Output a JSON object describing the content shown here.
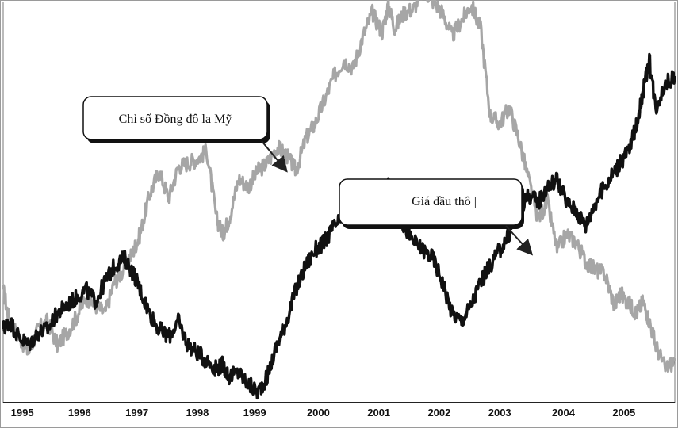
{
  "chart_data": {
    "type": "line",
    "xlim": [
      1994.9,
      2005.45
    ],
    "ylim": [
      0,
      100
    ],
    "x_ticks": [
      {
        "label": "1995",
        "x": 1995.2
      },
      {
        "label": "1996",
        "x": 1996.1
      },
      {
        "label": "1997",
        "x": 1997.0
      },
      {
        "label": "1998",
        "x": 1997.95
      },
      {
        "label": "1999",
        "x": 1998.85
      },
      {
        "label": "2000",
        "x": 1999.85
      },
      {
        "label": "2001",
        "x": 2000.8
      },
      {
        "label": "2002",
        "x": 2001.75
      },
      {
        "label": "2003",
        "x": 2002.7
      },
      {
        "label": "2004",
        "x": 2003.7
      },
      {
        "label": "2005",
        "x": 2004.65
      }
    ],
    "series": [
      {
        "name": "Chỉ số Đồng đô la Mỹ",
        "color": "#a6a6a6",
        "x": [
          1994.9,
          1995.0,
          1995.15,
          1995.3,
          1995.45,
          1995.6,
          1995.75,
          1995.9,
          1996.05,
          1996.2,
          1996.35,
          1996.5,
          1996.65,
          1996.8,
          1996.95,
          1997.05,
          1997.2,
          1997.35,
          1997.5,
          1997.65,
          1997.8,
          1997.95,
          1998.1,
          1998.25,
          1998.35,
          1998.45,
          1998.6,
          1998.75,
          1998.9,
          1999.05,
          1999.2,
          1999.35,
          1999.5,
          1999.65,
          1999.8,
          1999.95,
          2000.1,
          2000.25,
          2000.4,
          2000.55,
          2000.7,
          2000.85,
          2000.95,
          2001.05,
          2001.2,
          2001.35,
          2001.5,
          2001.65,
          2001.8,
          2001.95,
          2002.1,
          2002.25,
          2002.4,
          2002.55,
          2002.7,
          2002.85,
          2003.0,
          2003.15,
          2003.3,
          2003.45,
          2003.6,
          2003.75,
          2003.9,
          2004.05,
          2004.2,
          2004.35,
          2004.5,
          2004.6,
          2004.75,
          2004.85,
          2004.95,
          2005.05,
          2005.15,
          2005.3,
          2005.45
        ],
        "values": [
          28,
          20,
          16,
          12,
          18,
          20,
          14,
          17,
          21,
          26,
          24,
          22,
          30,
          33,
          38,
          42,
          52,
          58,
          51,
          59,
          60,
          61,
          63,
          46,
          42,
          46,
          56,
          54,
          58,
          60,
          64,
          62,
          58,
          66,
          70,
          76,
          82,
          86,
          84,
          92,
          98,
          93,
          100,
          94,
          98,
          99,
          104,
          101,
          98,
          92,
          96,
          100,
          94,
          72,
          70,
          74,
          66,
          56,
          46,
          50,
          38,
          42,
          40,
          35,
          33,
          32,
          24,
          27,
          24,
          22,
          25,
          20,
          14,
          8,
          10
        ]
      },
      {
        "name": "Giá dầu thô",
        "color": "#111111",
        "x": [
          1994.9,
          1995.0,
          1995.15,
          1995.3,
          1995.45,
          1995.6,
          1995.75,
          1995.9,
          1996.05,
          1996.2,
          1996.35,
          1996.5,
          1996.65,
          1996.8,
          1996.95,
          1997.05,
          1997.2,
          1997.35,
          1997.5,
          1997.65,
          1997.8,
          1997.95,
          1998.1,
          1998.25,
          1998.35,
          1998.45,
          1998.6,
          1998.75,
          1998.9,
          1999.05,
          1999.2,
          1999.35,
          1999.5,
          1999.65,
          1999.8,
          1999.95,
          2000.1,
          2000.25,
          2000.4,
          2000.55,
          2000.7,
          2000.85,
          2000.95,
          2001.05,
          2001.2,
          2001.35,
          2001.5,
          2001.65,
          2001.8,
          2001.95,
          2002.1,
          2002.25,
          2002.4,
          2002.55,
          2002.7,
          2002.85,
          2003.0,
          2003.15,
          2003.3,
          2003.45,
          2003.6,
          2003.75,
          2003.9,
          2004.05,
          2004.2,
          2004.35,
          2004.5,
          2004.6,
          2004.75,
          2004.85,
          2004.95,
          2005.05,
          2005.15,
          2005.3,
          2005.45
        ],
        "values": [
          18,
          20,
          16,
          14,
          17,
          18,
          22,
          24,
          26,
          28,
          25,
          30,
          34,
          36,
          32,
          28,
          22,
          18,
          16,
          20,
          14,
          12,
          10,
          8,
          9,
          6,
          7,
          4,
          2,
          6,
          14,
          20,
          28,
          34,
          38,
          40,
          44,
          46,
          48,
          50,
          49,
          52,
          54,
          48,
          44,
          40,
          38,
          36,
          30,
          22,
          20,
          24,
          30,
          34,
          38,
          42,
          48,
          52,
          50,
          54,
          56,
          50,
          48,
          44,
          50,
          54,
          58,
          60,
          64,
          70,
          78,
          86,
          74,
          80,
          82
        ]
      }
    ],
    "annotations": [
      {
        "text": "Chỉ số Đồng đô la Mỹ"
      },
      {
        "text": "Giá dầu thô  |"
      }
    ]
  }
}
